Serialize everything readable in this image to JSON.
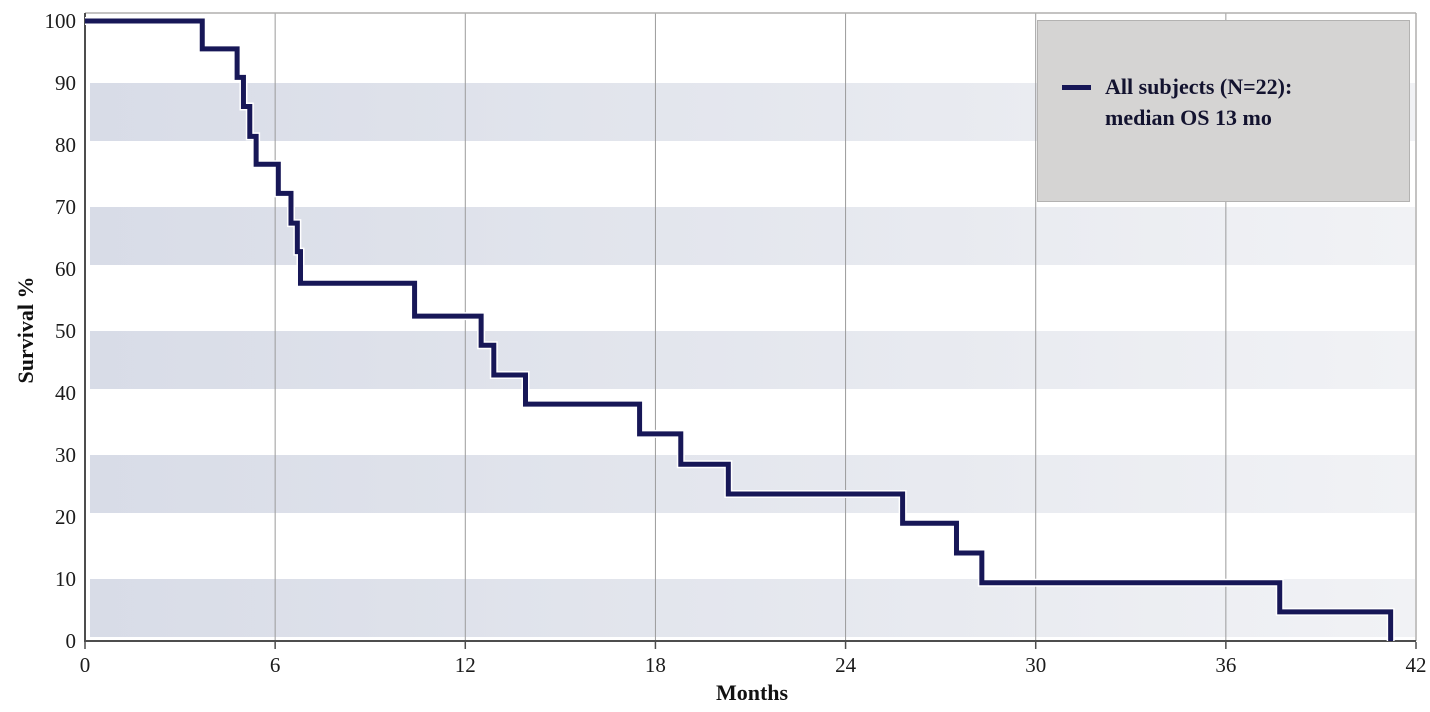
{
  "chart_data": {
    "type": "line",
    "subtype": "kaplan-meier-step-curve",
    "title": "",
    "xlabel": "Months",
    "ylabel": "Survival %",
    "xlim": [
      0,
      42
    ],
    "ylim": [
      0,
      100
    ],
    "xticks": [
      0,
      6,
      12,
      18,
      24,
      30,
      36,
      42
    ],
    "yticks": [
      0,
      10,
      20,
      30,
      40,
      50,
      60,
      70,
      80,
      90,
      100
    ],
    "grid": "vertical gridlines at each x tick; horizontal shaded decade bands (0-10, 20-30, 40-50, 60-70, 80-90)",
    "legend_position": "top-right",
    "series": [
      {
        "name": "All subjects (N=22): median OS 13 mo",
        "start": {
          "month": 0,
          "survival_pct": 100
        },
        "steps": [
          [
            3.7,
            95.5
          ],
          [
            4.8,
            90.9
          ],
          [
            5.0,
            86.2
          ],
          [
            5.2,
            81.4
          ],
          [
            5.4,
            76.9
          ],
          [
            6.1,
            72.2
          ],
          [
            6.5,
            67.4
          ],
          [
            6.7,
            62.8
          ],
          [
            6.8,
            57.7
          ],
          [
            10.4,
            52.4
          ],
          [
            12.5,
            47.7
          ],
          [
            12.9,
            42.9
          ],
          [
            13.9,
            38.2
          ],
          [
            17.5,
            33.4
          ],
          [
            18.8,
            28.5
          ],
          [
            20.3,
            23.7
          ],
          [
            25.8,
            19.0
          ],
          [
            27.5,
            14.2
          ],
          [
            28.3,
            9.4
          ],
          [
            37.7,
            4.7
          ],
          [
            41.2,
            0
          ]
        ]
      }
    ]
  },
  "legend": {
    "line1": "All subjects (N=22):",
    "line2": "median OS 13 mo",
    "marker": "navy-line"
  },
  "colors": {
    "curve": "#171757",
    "curve_halo": "#ffffff",
    "band_left": "#d8dce7",
    "band_right": "#f1f2f5",
    "gridline": "#9b9b9b",
    "axis": "#4d4d4d",
    "plot_border": "#b0afae",
    "legend_fill": "#d5d4d3",
    "legend_border": "#b3b2b1",
    "legend_text": "#13132f",
    "tick_label": "#1c1c1c"
  }
}
